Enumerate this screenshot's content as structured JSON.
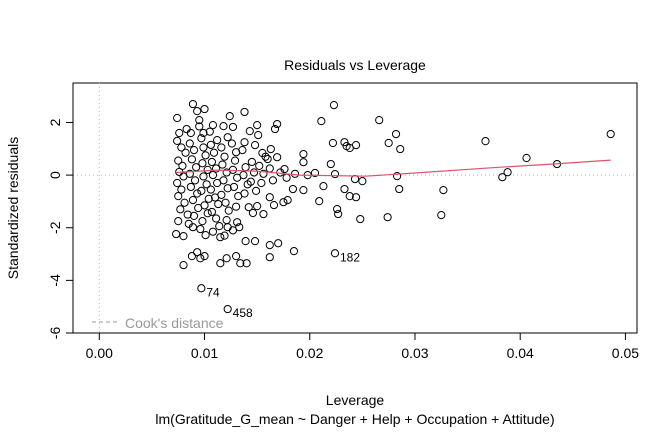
{
  "chart_data": {
    "type": "scatter",
    "title": "Residuals vs Leverage",
    "xlabel": "Leverage",
    "ylabel": "Standardized residuals",
    "subtitle": "lm(Gratitude_G_mean ~ Danger + Help + Occupation + Attitude)",
    "xlim": [
      -0.0025,
      0.0511
    ],
    "ylim": [
      -6.0,
      3.5
    ],
    "x_ticks": [
      0.0,
      0.01,
      0.02,
      0.03,
      0.04,
      0.05
    ],
    "x_tick_labels": [
      "0.00",
      "0.01",
      "0.02",
      "0.03",
      "0.04",
      "0.05"
    ],
    "y_ticks": [
      -6,
      -4,
      -2,
      0,
      2
    ],
    "y_tick_labels": [
      "-6",
      "-4",
      "-2",
      "0",
      "2"
    ],
    "grid": false,
    "reference_lines": {
      "x": 0,
      "y": 0,
      "style": "dotted",
      "color": "#bbbbbb"
    },
    "legend": {
      "entry": "Cook's distance",
      "placement": "bottom-left",
      "style": "dashed",
      "color": "#999999"
    },
    "smooth_color": "#df536b",
    "smooth_line": [
      [
        0.0073,
        0.1
      ],
      [
        0.01,
        0.16
      ],
      [
        0.0112,
        0.19
      ],
      [
        0.015,
        0.15
      ],
      [
        0.0191,
        0.0
      ],
      [
        0.0253,
        -0.04
      ],
      [
        0.03,
        0.08
      ],
      [
        0.0381,
        0.3
      ],
      [
        0.043,
        0.42
      ],
      [
        0.0486,
        0.57
      ]
    ],
    "labeled_points": [
      {
        "label": "74",
        "x": 0.0097,
        "y": -4.3
      },
      {
        "label": "458",
        "x": 0.0122,
        "y": -5.09
      },
      {
        "label": "182",
        "x": 0.0224,
        "y": -2.97
      }
    ],
    "points": [
      [
        0.0223,
        2.66
      ],
      [
        0.0211,
        2.05
      ],
      [
        0.0266,
        2.09
      ],
      [
        0.0282,
        1.56
      ],
      [
        0.0222,
        1.22
      ],
      [
        0.0233,
        1.25
      ],
      [
        0.0235,
        1.1
      ],
      [
        0.0244,
        1.14
      ],
      [
        0.0238,
        1.03
      ],
      [
        0.0275,
        1.22
      ],
      [
        0.0286,
        0.99
      ],
      [
        0.0367,
        1.29
      ],
      [
        0.0486,
        1.56
      ],
      [
        0.0406,
        0.65
      ],
      [
        0.0435,
        0.42
      ],
      [
        0.0388,
        0.11
      ],
      [
        0.0383,
        -0.08
      ],
      [
        0.022,
        0.42
      ],
      [
        0.0224,
        0.04
      ],
      [
        0.0205,
        0.08
      ],
      [
        0.0198,
        0.0
      ],
      [
        0.0283,
        -0.04
      ],
      [
        0.0243,
        -0.15
      ],
      [
        0.025,
        -0.23
      ],
      [
        0.0213,
        -0.42
      ],
      [
        0.0233,
        -0.53
      ],
      [
        0.0285,
        -0.53
      ],
      [
        0.0327,
        -0.57
      ],
      [
        0.0238,
        -0.8
      ],
      [
        0.0244,
        -0.84
      ],
      [
        0.0209,
        -0.99
      ],
      [
        0.0226,
        -1.29
      ],
      [
        0.0227,
        -1.48
      ],
      [
        0.0248,
        -1.67
      ],
      [
        0.0274,
        -1.6
      ],
      [
        0.0325,
        -1.52
      ],
      [
        0.0089,
        2.7
      ],
      [
        0.01,
        2.51
      ],
      [
        0.0074,
        2.17
      ],
      [
        0.0093,
        2.43
      ],
      [
        0.0124,
        2.24
      ],
      [
        0.0138,
        2.4
      ],
      [
        0.0095,
        2.09
      ],
      [
        0.0169,
        1.94
      ],
      [
        0.015,
        1.9
      ],
      [
        0.0108,
        1.9
      ],
      [
        0.0118,
        1.86
      ],
      [
        0.0127,
        1.83
      ],
      [
        0.0143,
        1.67
      ],
      [
        0.0122,
        1.44
      ],
      [
        0.0151,
        1.52
      ],
      [
        0.0167,
        1.75
      ],
      [
        0.0076,
        1.6
      ],
      [
        0.0087,
        1.6
      ],
      [
        0.0099,
        1.6
      ],
      [
        0.0112,
        1.33
      ],
      [
        0.0148,
        1.14
      ],
      [
        0.0138,
        1.25
      ],
      [
        0.013,
        0.87
      ],
      [
        0.0155,
        0.84
      ],
      [
        0.0163,
        0.99
      ],
      [
        0.0169,
        0.68
      ],
      [
        0.016,
        0.61
      ],
      [
        0.0194,
        0.8
      ],
      [
        0.0194,
        0.49
      ],
      [
        0.0176,
        0.23
      ],
      [
        0.0184,
        -0.53
      ],
      [
        0.0194,
        -0.57
      ],
      [
        0.0162,
        -0.84
      ],
      [
        0.0166,
        -1.14
      ],
      [
        0.0175,
        -1.03
      ],
      [
        0.0179,
        -0.95
      ],
      [
        0.015,
        -1.18
      ],
      [
        0.0156,
        -1.48
      ],
      [
        0.0142,
        -1.22
      ],
      [
        0.0146,
        -1.44
      ],
      [
        0.0131,
        -1.79
      ],
      [
        0.0121,
        -1.71
      ],
      [
        0.0133,
        -1.98
      ],
      [
        0.0122,
        -1.98
      ],
      [
        0.0115,
        -2.36
      ],
      [
        0.0139,
        -2.51
      ],
      [
        0.0148,
        -2.51
      ],
      [
        0.0162,
        -2.66
      ],
      [
        0.017,
        -2.59
      ],
      [
        0.0185,
        -2.89
      ],
      [
        0.0162,
        -3.12
      ],
      [
        0.013,
        -3.08
      ],
      [
        0.0134,
        -3.35
      ],
      [
        0.014,
        -3.35
      ],
      [
        0.0121,
        -3.16
      ],
      [
        0.0115,
        -3.35
      ],
      [
        0.008,
        -3.42
      ],
      [
        0.0088,
        -3.08
      ],
      [
        0.0093,
        -2.93
      ],
      [
        0.01,
        -3.08
      ],
      [
        0.0096,
        -3.16
      ],
      [
        0.0073,
        -2.24
      ],
      [
        0.008,
        -2.32
      ],
      [
        0.0075,
        -1.75
      ],
      [
        0.0089,
        -1.98
      ],
      [
        0.0101,
        -2.28
      ],
      [
        0.0114,
        -1.94
      ],
      [
        0.0074,
        1.3
      ],
      [
        0.0078,
        1.05
      ],
      [
        0.0082,
        0.85
      ],
      [
        0.0075,
        0.55
      ],
      [
        0.0079,
        0.35
      ],
      [
        0.0076,
        0.12
      ],
      [
        0.008,
        -0.05
      ],
      [
        0.0074,
        -0.3
      ],
      [
        0.0078,
        -0.55
      ],
      [
        0.0075,
        -0.8
      ],
      [
        0.0081,
        -1.05
      ],
      [
        0.0077,
        -1.3
      ],
      [
        0.0084,
        -1.5
      ],
      [
        0.0086,
        1.2
      ],
      [
        0.009,
        0.95
      ],
      [
        0.0088,
        0.6
      ],
      [
        0.0092,
        0.3
      ],
      [
        0.0086,
        0.05
      ],
      [
        0.0091,
        -0.2
      ],
      [
        0.0087,
        -0.45
      ],
      [
        0.0093,
        -0.7
      ],
      [
        0.0089,
        -0.95
      ],
      [
        0.0094,
        -1.25
      ],
      [
        0.009,
        -1.55
      ],
      [
        0.0097,
        1.4
      ],
      [
        0.0099,
        1.05
      ],
      [
        0.0101,
        0.75
      ],
      [
        0.0098,
        0.45
      ],
      [
        0.0103,
        0.2
      ],
      [
        0.0099,
        -0.05
      ],
      [
        0.0102,
        -0.35
      ],
      [
        0.0097,
        -0.6
      ],
      [
        0.0104,
        -0.9
      ],
      [
        0.01,
        -1.15
      ],
      [
        0.0103,
        -1.45
      ],
      [
        0.0098,
        -1.75
      ],
      [
        0.0106,
        1.15
      ],
      [
        0.0109,
        0.85
      ],
      [
        0.0107,
        0.5
      ],
      [
        0.0111,
        0.25
      ],
      [
        0.0108,
        0.0
      ],
      [
        0.0112,
        -0.3
      ],
      [
        0.0106,
        -0.55
      ],
      [
        0.011,
        -0.85
      ],
      [
        0.0113,
        -1.1
      ],
      [
        0.0107,
        -1.4
      ],
      [
        0.0111,
        -1.65
      ],
      [
        0.0116,
        1.05
      ],
      [
        0.0119,
        0.7
      ],
      [
        0.0117,
        0.4
      ],
      [
        0.0121,
        0.1
      ],
      [
        0.0118,
        -0.2
      ],
      [
        0.0122,
        -0.5
      ],
      [
        0.0116,
        -0.75
      ],
      [
        0.012,
        -1.05
      ],
      [
        0.0123,
        -1.35
      ],
      [
        0.0126,
        1.2
      ],
      [
        0.0129,
        0.55
      ],
      [
        0.0127,
        0.2
      ],
      [
        0.0131,
        -0.1
      ],
      [
        0.0128,
        -0.45
      ],
      [
        0.0132,
        -0.8
      ],
      [
        0.013,
        -1.2
      ],
      [
        0.0136,
        0.95
      ],
      [
        0.0139,
        0.3
      ],
      [
        0.0137,
        0.0
      ],
      [
        0.0141,
        -0.35
      ],
      [
        0.0138,
        -0.7
      ],
      [
        0.0145,
        0.5
      ],
      [
        0.0147,
        0.1
      ],
      [
        0.0144,
        -0.25
      ],
      [
        0.0149,
        -0.6
      ],
      [
        0.0152,
        0.35
      ],
      [
        0.0156,
        0.05
      ],
      [
        0.0154,
        -0.3
      ],
      [
        0.0158,
        0.7
      ],
      [
        0.0162,
        0.25
      ],
      [
        0.0165,
        -0.2
      ],
      [
        0.0172,
        0.1
      ],
      [
        0.0178,
        -0.1
      ],
      [
        0.0186,
        0.05
      ],
      [
        0.0083,
        1.75
      ],
      [
        0.0095,
        1.85
      ],
      [
        0.0105,
        1.65
      ],
      [
        0.0085,
        -1.85
      ],
      [
        0.0096,
        -2.05
      ],
      [
        0.0108,
        -2.15
      ],
      [
        0.0119,
        -2.3
      ],
      [
        0.0127,
        -2.1
      ]
    ]
  }
}
